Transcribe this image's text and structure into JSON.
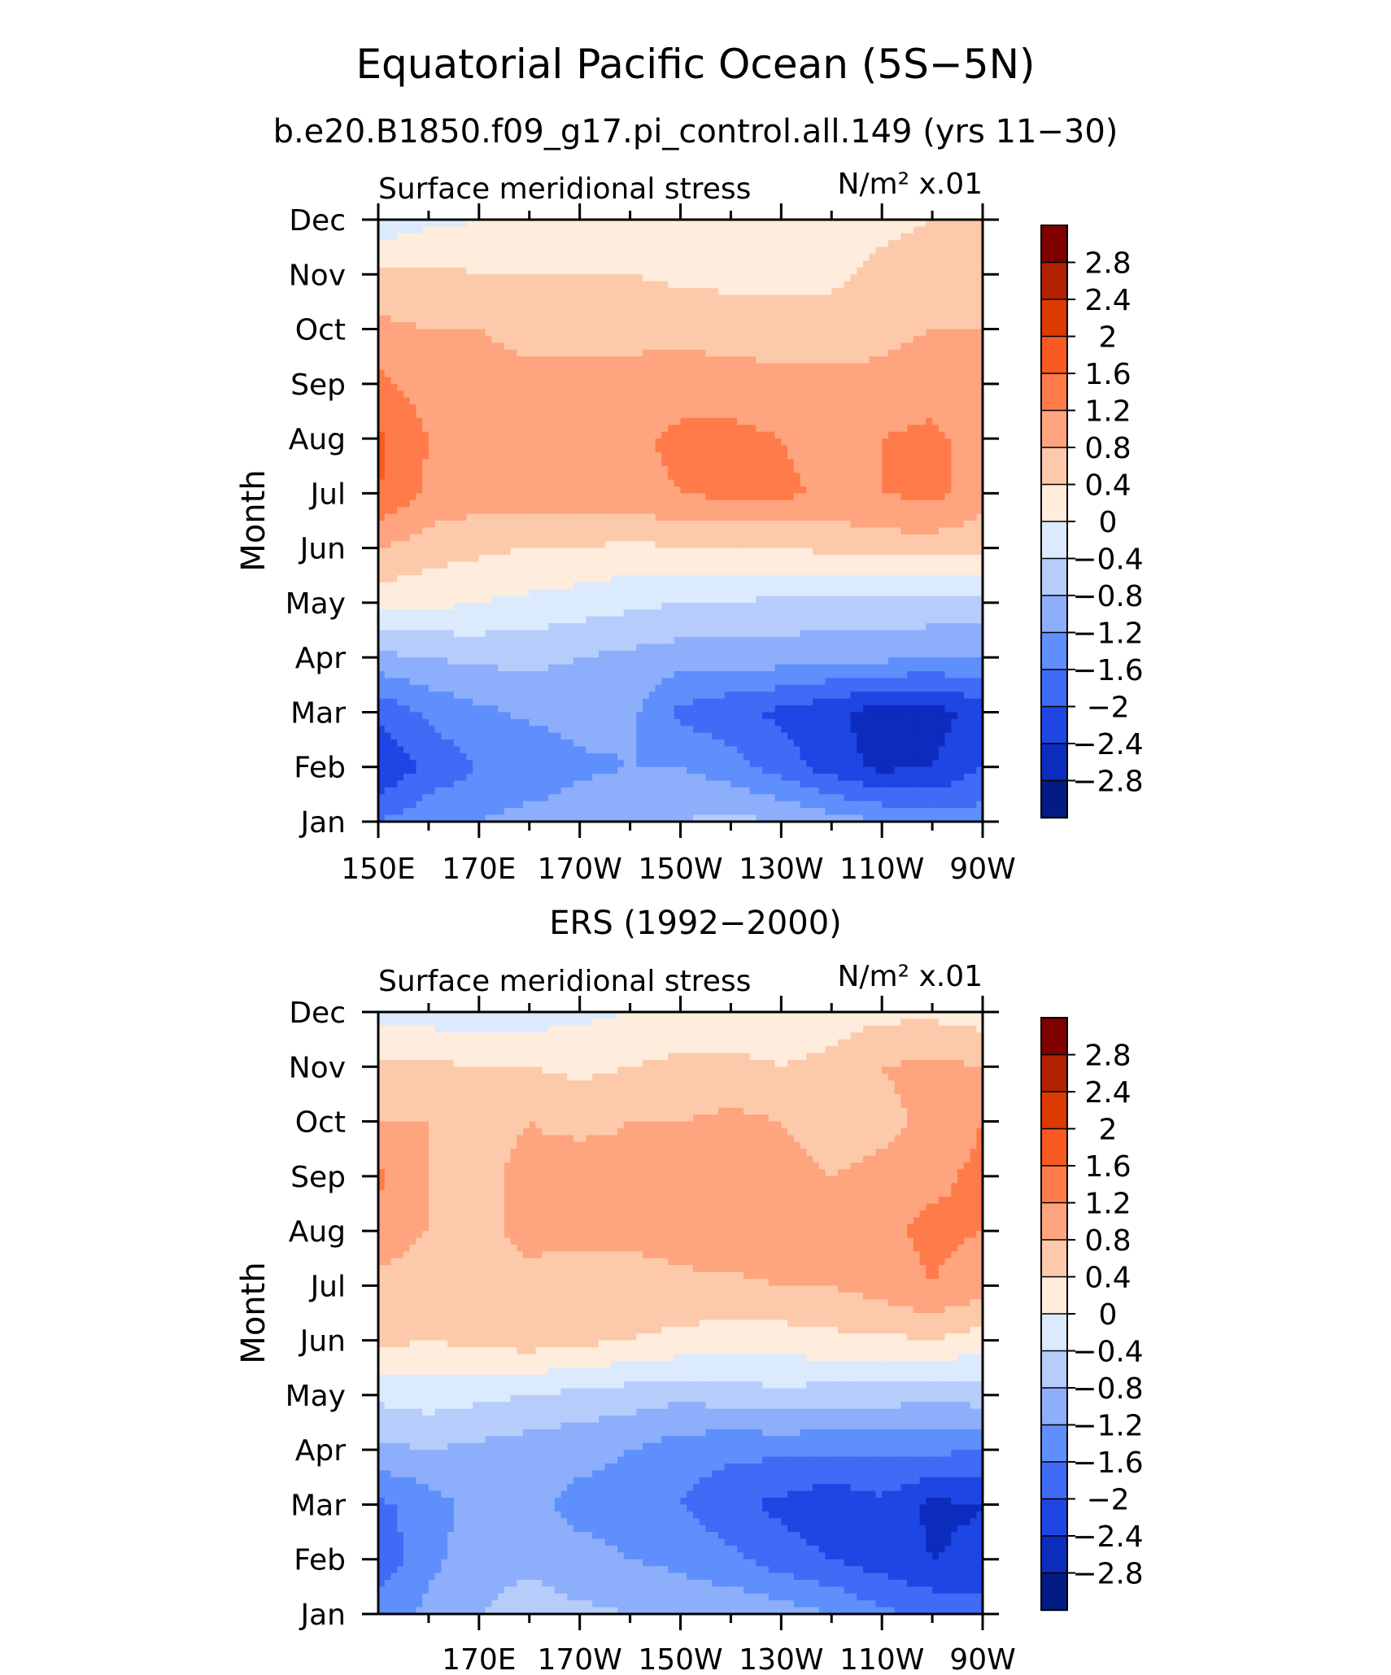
{
  "figure": {
    "title": "Equatorial Pacific Ocean (5S−5N)"
  },
  "colorbar": {
    "labels": [
      "2.8",
      "2.4",
      "2",
      "1.6",
      "1.2",
      "0.8",
      "0.4",
      "0",
      "−0.4",
      "−0.8",
      "−1.2",
      "−1.6",
      "−2",
      "−2.4",
      "−2.8"
    ],
    "colors": [
      "#800000",
      "#b22100",
      "#dc3a00",
      "#f95a22",
      "#ff7b4a",
      "#fea47e",
      "#fdc9ab",
      "#feecdc",
      "#dceafe",
      "#b6cdfc",
      "#8daefb",
      "#5e8ffc",
      "#3f6bf6",
      "#1e46e4",
      "#0c2cbe",
      "#021c84"
    ]
  },
  "chart_data": [
    {
      "type": "contour",
      "panel_title": "b.e20.B1850.f09_g17.pi_control.all.149 (yrs 11−30)",
      "variable": "Surface meridional stress",
      "units": "N/m² x.01",
      "ylabel": "Month",
      "x_ticks": [
        "150E",
        "170E",
        "170W",
        "150W",
        "130W",
        "110W",
        "90W"
      ],
      "x_values": [
        150,
        170,
        190,
        210,
        230,
        250,
        270
      ],
      "xlim": [
        150,
        270
      ],
      "y_ticks": [
        "Jan",
        "Feb",
        "Mar",
        "Apr",
        "May",
        "Jun",
        "Jul",
        "Aug",
        "Sep",
        "Oct",
        "Nov",
        "Dec"
      ],
      "ylim": [
        1,
        12
      ],
      "grid": false,
      "colorbar_position": "right",
      "values_by_month": [
        [
          -1.6,
          -1.3,
          -1.2,
          -1.0,
          -0.9,
          -0.8,
          -0.8,
          -0.7,
          -0.8,
          -1.0,
          -1.2,
          -1.4,
          -1.4
        ],
        [
          -2.4,
          -1.9,
          -1.6,
          -1.6,
          -1.3,
          -1.2,
          -1.2,
          -1.4,
          -1.8,
          -2.2,
          -2.5,
          -2.4,
          -2.0
        ],
        [
          -1.9,
          -1.5,
          -1.3,
          -1.1,
          -1.0,
          -1.1,
          -1.7,
          -1.9,
          -2.1,
          -2.3,
          -2.6,
          -2.6,
          -2.2
        ],
        [
          -0.9,
          -0.8,
          -0.7,
          -0.7,
          -0.8,
          -0.9,
          -1.0,
          -1.0,
          -1.0,
          -1.1,
          -1.1,
          -1.2,
          -1.2
        ],
        [
          0.2,
          0.1,
          0.0,
          -0.1,
          -0.2,
          -0.3,
          -0.4,
          -0.4,
          -0.5,
          -0.5,
          -0.5,
          -0.5,
          -0.6
        ],
        [
          0.8,
          0.6,
          0.5,
          0.4,
          0.4,
          0.3,
          0.4,
          0.4,
          0.4,
          0.5,
          0.6,
          0.6,
          0.5
        ],
        [
          1.6,
          1.1,
          1.0,
          1.0,
          1.1,
          1.1,
          1.2,
          1.3,
          1.3,
          1.1,
          1.2,
          1.3,
          1.0
        ],
        [
          1.7,
          1.2,
          1.0,
          1.0,
          1.0,
          1.1,
          1.3,
          1.3,
          1.2,
          1.0,
          1.2,
          1.3,
          1.0
        ],
        [
          1.3,
          1.0,
          0.9,
          0.9,
          0.9,
          0.9,
          1.0,
          1.0,
          0.9,
          0.9,
          0.9,
          1.0,
          0.9
        ],
        [
          0.9,
          0.8,
          0.8,
          0.7,
          0.7,
          0.7,
          0.7,
          0.6,
          0.6,
          0.6,
          0.7,
          0.8,
          0.8
        ],
        [
          0.5,
          0.5,
          0.4,
          0.4,
          0.4,
          0.4,
          0.3,
          0.3,
          0.3,
          0.3,
          0.5,
          0.6,
          0.6
        ],
        [
          -0.3,
          -0.1,
          0.0,
          0.0,
          0.1,
          0.1,
          0.1,
          0.1,
          0.2,
          0.2,
          0.3,
          0.4,
          0.4
        ]
      ]
    },
    {
      "type": "contour",
      "panel_title": "ERS (1992−2000)",
      "variable": "Surface meridional stress",
      "units": "N/m² x.01",
      "ylabel": "Month",
      "x_ticks": [
        "170E",
        "170W",
        "150W",
        "130W",
        "110W",
        "90W"
      ],
      "x_values": [
        170,
        190,
        210,
        230,
        250,
        270
      ],
      "xlim": [
        150,
        270
      ],
      "y_ticks": [
        "Jan",
        "Feb",
        "Mar",
        "Apr",
        "May",
        "Jun",
        "Jul",
        "Aug",
        "Sep",
        "Oct",
        "Nov",
        "Dec"
      ],
      "ylim": [
        1,
        12
      ],
      "grid": false,
      "colorbar_position": "right",
      "values_by_month": [
        [
          -1.4,
          -1.1,
          -0.8,
          -0.6,
          -0.7,
          -0.8,
          -0.9,
          -0.9,
          -1.0,
          -1.2,
          -1.5,
          -1.7,
          -1.8
        ],
        [
          -1.9,
          -1.3,
          -1.0,
          -0.9,
          -1.1,
          -1.2,
          -1.3,
          -1.5,
          -1.8,
          -2.0,
          -2.2,
          -2.4,
          -2.3
        ],
        [
          -1.7,
          -1.4,
          -1.0,
          -1.1,
          -1.3,
          -1.3,
          -1.6,
          -1.9,
          -2.1,
          -2.3,
          -2.1,
          -2.5,
          -2.4
        ],
        [
          -0.9,
          -0.8,
          -0.9,
          -1.0,
          -1.1,
          -1.2,
          -1.4,
          -1.5,
          -1.5,
          -1.5,
          -1.5,
          -1.5,
          -1.6
        ],
        [
          -0.3,
          -0.2,
          -0.3,
          -0.4,
          -0.5,
          -0.6,
          -0.7,
          -0.6,
          -0.5,
          -0.6,
          -0.6,
          -0.7,
          -0.6
        ],
        [
          0.5,
          0.4,
          0.5,
          0.6,
          0.5,
          0.4,
          0.3,
          0.2,
          0.2,
          0.3,
          0.3,
          0.4,
          0.2
        ],
        [
          0.7,
          0.6,
          0.7,
          0.7,
          0.6,
          0.6,
          0.7,
          0.7,
          0.8,
          0.8,
          1.0,
          1.2,
          1.0
        ],
        [
          1.0,
          0.8,
          0.7,
          0.9,
          0.9,
          0.9,
          1.0,
          1.1,
          1.1,
          1.0,
          1.1,
          1.3,
          1.2
        ],
        [
          1.3,
          0.8,
          0.7,
          0.9,
          1.0,
          0.9,
          1.0,
          1.1,
          1.0,
          0.8,
          0.9,
          1.1,
          1.3
        ],
        [
          0.8,
          0.8,
          0.7,
          0.8,
          0.7,
          0.8,
          0.8,
          0.9,
          0.8,
          0.6,
          0.7,
          0.9,
          1.2
        ],
        [
          0.5,
          0.5,
          0.4,
          0.4,
          0.3,
          0.4,
          0.5,
          0.5,
          0.4,
          0.5,
          0.8,
          0.9,
          0.8
        ],
        [
          -0.2,
          -0.2,
          -0.3,
          -0.2,
          -0.1,
          0.0,
          0.1,
          0.1,
          0.2,
          0.2,
          0.3,
          0.3,
          0.2
        ]
      ]
    }
  ]
}
